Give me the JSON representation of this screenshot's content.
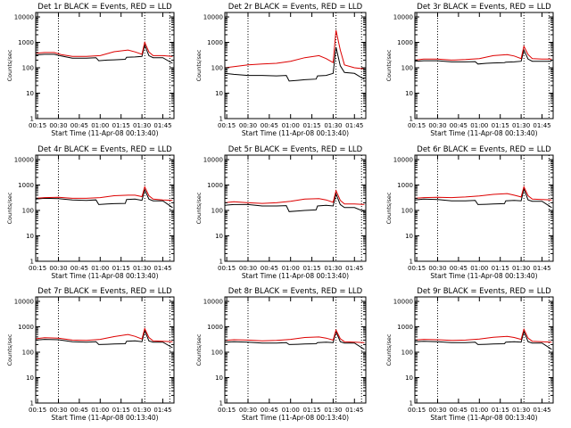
{
  "colors": {
    "events": "#000000",
    "lld": "#dd0000",
    "frame": "#000000",
    "marker": "#000000"
  },
  "chart_data": [
    {
      "type": "line",
      "title": "Det 1r BLACK = Events, RED = LLD",
      "xlabel": "Start Time (11-Apr-08 00:13:40)",
      "ylabel": "Counts/sec",
      "xlim": [
        "00:13:40",
        "01:53:00"
      ],
      "ylim": [
        1,
        15000
      ],
      "yscale": "log",
      "x_ticks": [
        "00:15",
        "00:30",
        "00:45",
        "01:00",
        "01:15",
        "01:30",
        "01:45"
      ],
      "y_ticks": [
        "1",
        "10",
        "100",
        "1000",
        "10000"
      ],
      "vertical_markers": [
        "00:30",
        "01:32",
        "01:50"
      ],
      "grid": false,
      "legend": "title",
      "series": [
        {
          "name": "BLACK = Events",
          "x": [
            "00:13:40",
            "00:20",
            "00:27",
            "00:32",
            "00:40",
            "00:50",
            "00:57",
            "00:59",
            "01:05",
            "01:10",
            "01:18",
            "01:19",
            "01:25",
            "01:30",
            "01:32",
            "01:35",
            "01:38",
            "01:45",
            "01:52"
          ],
          "y": [
            320,
            340,
            340,
            290,
            240,
            240,
            250,
            190,
            200,
            205,
            215,
            260,
            265,
            280,
            780,
            300,
            250,
            250,
            150
          ]
        },
        {
          "name": "RED = LLD",
          "x": [
            "00:13:40",
            "00:20",
            "00:27",
            "00:32",
            "00:40",
            "00:50",
            "01:00",
            "01:10",
            "01:20",
            "01:25",
            "01:30",
            "01:32",
            "01:35",
            "01:38",
            "01:45",
            "01:52"
          ],
          "y": [
            370,
            400,
            400,
            330,
            280,
            280,
            300,
            430,
            500,
            420,
            340,
            1000,
            420,
            300,
            300,
            280
          ]
        }
      ]
    },
    {
      "type": "line",
      "title": "Det 2r BLACK = Events, RED = LLD",
      "xlabel": "Start Time (11-Apr-08 00:13:40)",
      "ylabel": "Counts/sec",
      "xlim": [
        "00:13:40",
        "01:53:00"
      ],
      "ylim": [
        1,
        15000
      ],
      "yscale": "log",
      "x_ticks": [
        "00:15",
        "00:30",
        "00:45",
        "01:00",
        "01:15",
        "01:30",
        "01:45"
      ],
      "y_ticks": [
        "1",
        "10",
        "100",
        "1000",
        "10000"
      ],
      "vertical_markers": [
        "00:30",
        "01:32",
        "01:50"
      ],
      "grid": false,
      "legend": "title",
      "series": [
        {
          "name": "BLACK = Events",
          "x": [
            "00:13:40",
            "00:20",
            "00:30",
            "00:40",
            "00:50",
            "00:57",
            "00:59",
            "01:05",
            "01:10",
            "01:18",
            "01:19",
            "01:25",
            "01:30",
            "01:32",
            "01:35",
            "01:38",
            "01:45",
            "01:52"
          ],
          "y": [
            60,
            55,
            50,
            50,
            48,
            50,
            30,
            32,
            34,
            36,
            48,
            50,
            60,
            650,
            120,
            65,
            60,
            35
          ]
        },
        {
          "name": "RED = LLD",
          "x": [
            "00:13:40",
            "00:20",
            "00:30",
            "00:40",
            "00:50",
            "01:00",
            "01:10",
            "01:20",
            "01:25",
            "01:30",
            "01:32",
            "01:35",
            "01:38",
            "01:45",
            "01:52"
          ],
          "y": [
            100,
            110,
            130,
            140,
            150,
            180,
            250,
            300,
            230,
            160,
            3000,
            500,
            130,
            100,
            90
          ]
        }
      ]
    },
    {
      "type": "line",
      "title": "Det 3r BLACK = Events, RED = LLD",
      "xlabel": "Start Time (11-Apr-08 00:13:40)",
      "ylabel": "Counts/sec",
      "xlim": [
        "00:13:40",
        "01:53:00"
      ],
      "ylim": [
        1,
        15000
      ],
      "yscale": "log",
      "x_ticks": [
        "00:15",
        "00:30",
        "00:45",
        "01:00",
        "01:15",
        "01:30",
        "01:45"
      ],
      "y_ticks": [
        "1",
        "10",
        "100",
        "1000",
        "10000"
      ],
      "vertical_markers": [
        "00:30",
        "01:32",
        "01:50"
      ],
      "grid": false,
      "legend": "title",
      "series": [
        {
          "name": "BLACK = Events",
          "x": [
            "00:13:40",
            "00:20",
            "00:30",
            "00:40",
            "00:50",
            "00:57",
            "00:59",
            "01:05",
            "01:10",
            "01:18",
            "01:19",
            "01:25",
            "01:30",
            "01:32",
            "01:35",
            "01:38",
            "01:45",
            "01:52"
          ],
          "y": [
            180,
            190,
            190,
            170,
            170,
            175,
            140,
            150,
            155,
            160,
            165,
            170,
            180,
            500,
            220,
            180,
            180,
            180
          ]
        },
        {
          "name": "RED = LLD",
          "x": [
            "00:13:40",
            "00:20",
            "00:30",
            "00:40",
            "00:50",
            "01:00",
            "01:10",
            "01:20",
            "01:25",
            "01:30",
            "01:32",
            "01:35",
            "01:38",
            "01:45",
            "01:52"
          ],
          "y": [
            200,
            220,
            220,
            200,
            210,
            230,
            300,
            330,
            290,
            230,
            700,
            330,
            230,
            220,
            220
          ]
        }
      ]
    },
    {
      "type": "line",
      "title": "Det 4r BLACK = Events, RED = LLD",
      "xlabel": "Start Time (11-Apr-08 00:13:40)",
      "ylabel": "Counts/sec",
      "xlim": [
        "00:13:40",
        "01:53:00"
      ],
      "ylim": [
        1,
        15000
      ],
      "yscale": "log",
      "x_ticks": [
        "00:15",
        "00:30",
        "00:45",
        "01:00",
        "01:15",
        "01:30",
        "01:45"
      ],
      "y_ticks": [
        "1",
        "10",
        "100",
        "1000",
        "10000"
      ],
      "vertical_markers": [
        "00:30",
        "01:32",
        "01:50"
      ],
      "grid": false,
      "legend": "title",
      "series": [
        {
          "name": "BLACK = Events",
          "x": [
            "00:13:40",
            "00:20",
            "00:30",
            "00:40",
            "00:50",
            "00:57",
            "00:59",
            "01:05",
            "01:10",
            "01:18",
            "01:19",
            "01:25",
            "01:30",
            "01:32",
            "01:35",
            "01:38",
            "01:45",
            "01:52"
          ],
          "y": [
            280,
            300,
            290,
            260,
            250,
            260,
            170,
            180,
            185,
            190,
            270,
            280,
            250,
            650,
            280,
            240,
            240,
            130
          ]
        },
        {
          "name": "RED = LLD",
          "x": [
            "00:13:40",
            "00:20",
            "00:30",
            "00:40",
            "00:50",
            "01:00",
            "01:10",
            "01:20",
            "01:25",
            "01:30",
            "01:32",
            "01:35",
            "01:38",
            "01:45",
            "01:52"
          ],
          "y": [
            300,
            320,
            330,
            300,
            300,
            320,
            380,
            400,
            400,
            350,
            850,
            380,
            280,
            260,
            250
          ]
        }
      ]
    },
    {
      "type": "line",
      "title": "Det 5r BLACK = Events, RED = LLD",
      "xlabel": "Start Time (11-Apr-08 00:13:40)",
      "ylabel": "Counts/sec",
      "xlim": [
        "00:13:40",
        "01:53:00"
      ],
      "ylim": [
        1,
        15000
      ],
      "yscale": "log",
      "x_ticks": [
        "00:15",
        "00:30",
        "00:45",
        "01:00",
        "01:15",
        "01:30",
        "01:45"
      ],
      "y_ticks": [
        "1",
        "10",
        "100",
        "1000",
        "10000"
      ],
      "vertical_markers": [
        "00:30",
        "01:32",
        "01:50"
      ],
      "grid": false,
      "legend": "title",
      "series": [
        {
          "name": "BLACK = Events",
          "x": [
            "00:13:40",
            "00:20",
            "00:30",
            "00:40",
            "00:50",
            "00:57",
            "00:59",
            "01:05",
            "01:10",
            "01:18",
            "01:19",
            "01:25",
            "01:30",
            "01:32",
            "01:35",
            "01:38",
            "01:45",
            "01:52"
          ],
          "y": [
            160,
            170,
            170,
            150,
            150,
            155,
            90,
            95,
            100,
            105,
            150,
            160,
            150,
            450,
            170,
            130,
            130,
            90
          ]
        },
        {
          "name": "RED = LLD",
          "x": [
            "00:13:40",
            "00:20",
            "00:30",
            "00:40",
            "00:50",
            "01:00",
            "01:10",
            "01:20",
            "01:25",
            "01:30",
            "01:32",
            "01:35",
            "01:38",
            "01:45",
            "01:52"
          ],
          "y": [
            200,
            220,
            200,
            190,
            200,
            230,
            280,
            290,
            260,
            210,
            600,
            250,
            180,
            180,
            170
          ]
        }
      ]
    },
    {
      "type": "line",
      "title": "Det 6r BLACK = Events, RED = LLD",
      "xlabel": "Start Time (11-Apr-08 00:13:40)",
      "ylabel": "Counts/sec",
      "xlim": [
        "00:13:40",
        "01:53:00"
      ],
      "ylim": [
        1,
        15000
      ],
      "yscale": "log",
      "x_ticks": [
        "00:15",
        "00:30",
        "00:45",
        "01:00",
        "01:15",
        "01:30",
        "01:45"
      ],
      "y_ticks": [
        "1",
        "10",
        "100",
        "1000",
        "10000"
      ],
      "vertical_markers": [
        "00:30",
        "01:32",
        "01:50"
      ],
      "grid": false,
      "legend": "title",
      "series": [
        {
          "name": "BLACK = Events",
          "x": [
            "00:13:40",
            "00:20",
            "00:30",
            "00:40",
            "00:50",
            "00:57",
            "00:59",
            "01:05",
            "01:10",
            "01:18",
            "01:19",
            "01:25",
            "01:30",
            "01:32",
            "01:35",
            "01:38",
            "01:45",
            "01:52"
          ],
          "y": [
            260,
            280,
            270,
            240,
            240,
            250,
            170,
            175,
            180,
            185,
            240,
            250,
            240,
            700,
            260,
            230,
            230,
            130
          ]
        },
        {
          "name": "RED = LLD",
          "x": [
            "00:13:40",
            "00:20",
            "00:30",
            "00:40",
            "00:50",
            "01:00",
            "01:10",
            "01:20",
            "01:25",
            "01:30",
            "01:32",
            "01:35",
            "01:38",
            "01:45",
            "01:52"
          ],
          "y": [
            300,
            320,
            330,
            320,
            340,
            370,
            430,
            460,
            400,
            340,
            850,
            380,
            280,
            270,
            260
          ]
        }
      ]
    },
    {
      "type": "line",
      "title": "Det 7r BLACK = Events, RED = LLD",
      "xlabel": "Start Time (11-Apr-08 00:13:40)",
      "ylabel": "Counts/sec",
      "xlim": [
        "00:13:40",
        "01:53:00"
      ],
      "ylim": [
        1,
        15000
      ],
      "yscale": "log",
      "x_ticks": [
        "00:15",
        "00:30",
        "00:45",
        "01:00",
        "01:15",
        "01:30",
        "01:45"
      ],
      "y_ticks": [
        "1",
        "10",
        "100",
        "1000",
        "10000"
      ],
      "vertical_markers": [
        "00:30",
        "01:32",
        "01:50"
      ],
      "grid": false,
      "legend": "title",
      "series": [
        {
          "name": "BLACK = Events",
          "x": [
            "00:13:40",
            "00:20",
            "00:30",
            "00:40",
            "00:50",
            "00:57",
            "00:59",
            "01:05",
            "01:10",
            "01:18",
            "01:19",
            "01:25",
            "01:30",
            "01:32",
            "01:35",
            "01:38",
            "01:45",
            "01:52"
          ],
          "y": [
            300,
            320,
            310,
            260,
            250,
            260,
            200,
            205,
            210,
            215,
            270,
            280,
            260,
            700,
            280,
            250,
            250,
            150
          ]
        },
        {
          "name": "RED = LLD",
          "x": [
            "00:13:40",
            "00:20",
            "00:30",
            "00:40",
            "00:50",
            "01:00",
            "01:10",
            "01:20",
            "01:25",
            "01:30",
            "01:32",
            "01:35",
            "01:38",
            "01:45",
            "01:52"
          ],
          "y": [
            340,
            370,
            360,
            300,
            290,
            320,
            410,
            500,
            420,
            330,
            850,
            380,
            280,
            270,
            260
          ]
        }
      ]
    },
    {
      "type": "line",
      "title": "Det 8r BLACK = Events, RED = LLD",
      "xlabel": "Start Time (11-Apr-08 00:13:40)",
      "ylabel": "Counts/sec",
      "xlim": [
        "00:13:40",
        "01:53:00"
      ],
      "ylim": [
        1,
        15000
      ],
      "yscale": "log",
      "x_ticks": [
        "00:15",
        "00:30",
        "00:45",
        "01:00",
        "01:15",
        "01:30",
        "01:45"
      ],
      "y_ticks": [
        "1",
        "10",
        "100",
        "1000",
        "10000"
      ],
      "vertical_markers": [
        "00:30",
        "01:32",
        "01:50"
      ],
      "grid": false,
      "legend": "title",
      "series": [
        {
          "name": "BLACK = Events",
          "x": [
            "00:13:40",
            "00:20",
            "00:30",
            "00:40",
            "00:50",
            "00:57",
            "00:59",
            "01:05",
            "01:10",
            "01:18",
            "01:19",
            "01:25",
            "01:30",
            "01:32",
            "01:35",
            "01:38",
            "01:45",
            "01:52"
          ],
          "y": [
            250,
            260,
            250,
            230,
            230,
            240,
            200,
            205,
            210,
            215,
            240,
            250,
            240,
            650,
            260,
            230,
            230,
            130
          ]
        },
        {
          "name": "RED = LLD",
          "x": [
            "00:13:40",
            "00:20",
            "00:30",
            "00:40",
            "00:50",
            "01:00",
            "01:10",
            "01:20",
            "01:25",
            "01:30",
            "01:32",
            "01:35",
            "01:38",
            "01:45",
            "01:52"
          ],
          "y": [
            290,
            310,
            300,
            280,
            290,
            320,
            380,
            400,
            360,
            300,
            750,
            340,
            260,
            250,
            240
          ]
        }
      ]
    },
    {
      "type": "line",
      "title": "Det 9r BLACK = Events, RED = LLD",
      "xlabel": "Start Time (11-Apr-08 00:13:40)",
      "ylabel": "Counts/sec",
      "xlim": [
        "00:13:40",
        "01:53:00"
      ],
      "ylim": [
        1,
        15000
      ],
      "yscale": "log",
      "x_ticks": [
        "00:15",
        "00:30",
        "00:45",
        "01:00",
        "01:15",
        "01:30",
        "01:45"
      ],
      "y_ticks": [
        "1",
        "10",
        "100",
        "1000",
        "10000"
      ],
      "vertical_markers": [
        "00:30",
        "01:32",
        "01:50"
      ],
      "grid": false,
      "legend": "title",
      "series": [
        {
          "name": "BLACK = Events",
          "x": [
            "00:13:40",
            "00:20",
            "00:30",
            "00:40",
            "00:50",
            "00:57",
            "00:59",
            "01:05",
            "01:10",
            "01:18",
            "01:19",
            "01:25",
            "01:30",
            "01:32",
            "01:35",
            "01:38",
            "01:45",
            "01:52"
          ],
          "y": [
            260,
            270,
            260,
            240,
            240,
            250,
            200,
            205,
            210,
            215,
            250,
            260,
            250,
            650,
            260,
            230,
            230,
            130
          ]
        },
        {
          "name": "RED = LLD",
          "x": [
            "00:13:40",
            "00:20",
            "00:30",
            "00:40",
            "00:50",
            "01:00",
            "01:10",
            "01:20",
            "01:25",
            "01:30",
            "01:32",
            "01:35",
            "01:38",
            "01:45",
            "01:52"
          ],
          "y": [
            300,
            320,
            310,
            290,
            300,
            330,
            390,
            420,
            380,
            320,
            800,
            360,
            270,
            260,
            250
          ]
        }
      ]
    }
  ]
}
